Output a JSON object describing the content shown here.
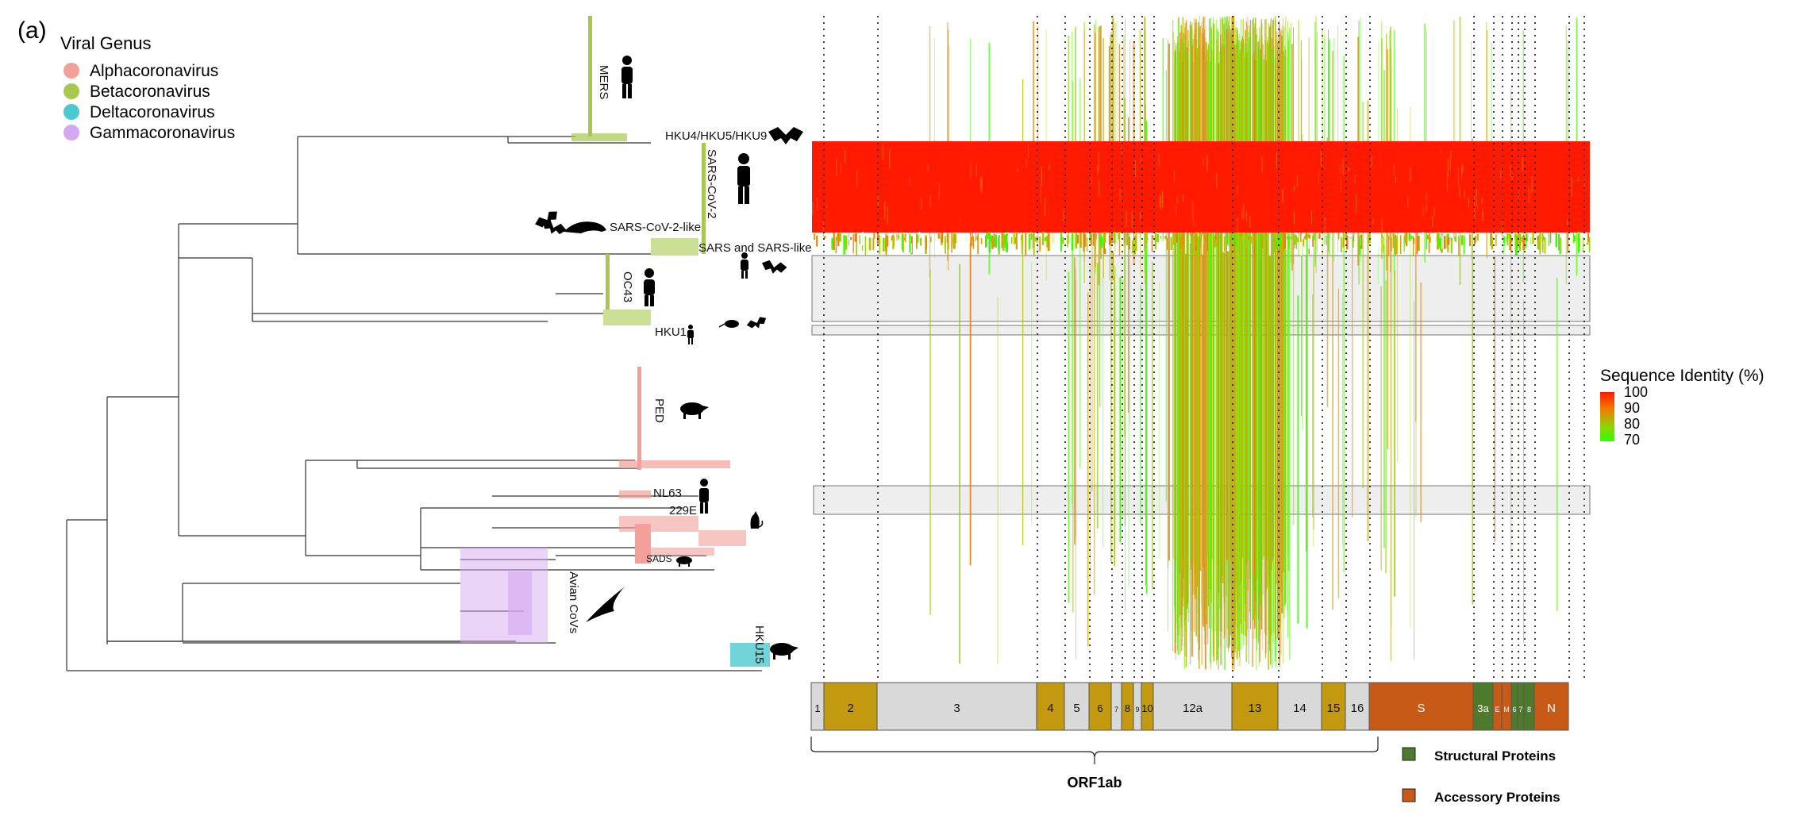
{
  "panel_label": "(a)",
  "legend_genus": {
    "title": "Viral Genus",
    "items": [
      {
        "label": "Alphacoronavirus",
        "color": "#f4a09a"
      },
      {
        "label": "Betacoronavirus",
        "color": "#a8c94e"
      },
      {
        "label": "Deltacoronavirus",
        "color": "#4cc9cf"
      },
      {
        "label": "Gammacoronavirus",
        "color": "#d4a8f0"
      }
    ]
  },
  "tree_labels": {
    "mers": "MERS",
    "hku4": "HKU4/HKU5/HKU9",
    "sarscov2": "SARS-CoV-2",
    "sarscov2like": "SARS-CoV-2-like",
    "sarslike": "SARS and SARS-like",
    "oc43": "OC43",
    "hku1": "HKU1",
    "ped": "PED",
    "nl63": "NL63",
    "e229": "229E",
    "sads": "SADS",
    "avian": "Avian CoVs",
    "hku15": "HKU15"
  },
  "identity_legend": {
    "title": "Sequence Identity (%)",
    "ticks": [
      "100",
      "90",
      "80",
      "70"
    ],
    "colors": [
      "#ff1a00",
      "#f07d00",
      "#8fd400",
      "#33ff00"
    ]
  },
  "genome": {
    "segments": [
      {
        "label": "1",
        "color": "#d9d9d9"
      },
      {
        "label": "2",
        "color": "#c39a0f"
      },
      {
        "label": "3",
        "color": "#d9d9d9"
      },
      {
        "label": "4",
        "color": "#c39a0f"
      },
      {
        "label": "5",
        "color": "#d9d9d9"
      },
      {
        "label": "6",
        "color": "#c39a0f"
      },
      {
        "label": "7",
        "color": "#d9d9d9"
      },
      {
        "label": "8",
        "color": "#c39a0f"
      },
      {
        "label": "9",
        "color": "#d9d9d9"
      },
      {
        "label": "10",
        "color": "#c39a0f"
      },
      {
        "label": "12a",
        "color": "#d9d9d9"
      },
      {
        "label": "13",
        "color": "#c39a0f"
      },
      {
        "label": "14",
        "color": "#d9d9d9"
      },
      {
        "label": "15",
        "color": "#c39a0f"
      },
      {
        "label": "16",
        "color": "#d9d9d9"
      },
      {
        "label": "S",
        "color": "#c65a16"
      },
      {
        "label": "3a",
        "color": "#4f7a2c"
      },
      {
        "label": "E",
        "color": "#c65a16"
      },
      {
        "label": "M",
        "color": "#c65a16"
      },
      {
        "label": "6",
        "color": "#4f7a2c"
      },
      {
        "label": "7",
        "color": "#4f7a2c"
      },
      {
        "label": "8",
        "color": "#4f7a2c"
      },
      {
        "label": "N",
        "color": "#c65a16"
      }
    ],
    "orf_label": "ORF1ab"
  },
  "protein_legend": [
    {
      "label": "Structural Proteins",
      "color": "#4f7a2c"
    },
    {
      "label": "Accessory Proteins",
      "color": "#c65a16"
    }
  ],
  "colors": {
    "alpha": "#f4a09a",
    "beta": "#a8c94e",
    "delta": "#4cc9cf",
    "gamma": "#d4a8f0",
    "branch": "#333333",
    "red": "#ff1a00",
    "highlight": "#eeeeee"
  },
  "icons": [
    "human-icon",
    "bat-icon",
    "pangolin-icon",
    "rat-icon",
    "pig-icon",
    "cat-icon",
    "bird-icon"
  ]
}
